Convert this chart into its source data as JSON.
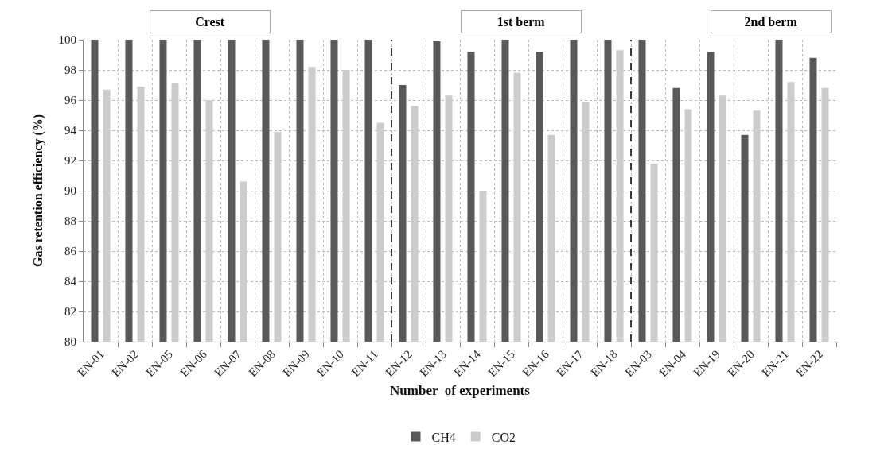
{
  "chart_data": {
    "type": "bar",
    "xlabel": "Number  of experiments",
    "ylabel": "Gas retention efficiency (%)",
    "categories": [
      "EN-01",
      "EN-02",
      "EN-05",
      "EN-06",
      "EN-07",
      "EN-08",
      "EN-09",
      "EN-10",
      "EN-11",
      "EN-12",
      "EN-13",
      "EN-14",
      "EN-15",
      "EN-16",
      "EN-17",
      "EN-18",
      "EN-03",
      "EN-04",
      "EN-19",
      "EN-20",
      "EN-21",
      "EN-22"
    ],
    "series": [
      {
        "name": "CH4",
        "color": "#595959",
        "values": [
          100,
          100,
          100,
          100,
          100,
          100,
          100,
          100,
          100,
          97.0,
          99.9,
          99.2,
          100,
          99.2,
          100,
          100,
          100,
          96.8,
          99.2,
          93.7,
          100,
          98.8
        ]
      },
      {
        "name": "CO2",
        "color": "#cccccc",
        "values": [
          96.7,
          96.9,
          97.1,
          96.0,
          90.6,
          93.9,
          98.2,
          98.0,
          94.5,
          95.6,
          96.3,
          90.0,
          97.8,
          93.7,
          95.9,
          99.3,
          91.8,
          95.4,
          96.3,
          95.3,
          97.2,
          96.8
        ]
      }
    ],
    "annotations": [
      "Crest",
      "1st berm",
      "2nd berm"
    ],
    "ylim": [
      80,
      100
    ],
    "yticks": [
      80,
      82,
      84,
      86,
      88,
      90,
      92,
      94,
      96,
      98,
      100
    ],
    "grid": true,
    "legend": "bottom"
  }
}
